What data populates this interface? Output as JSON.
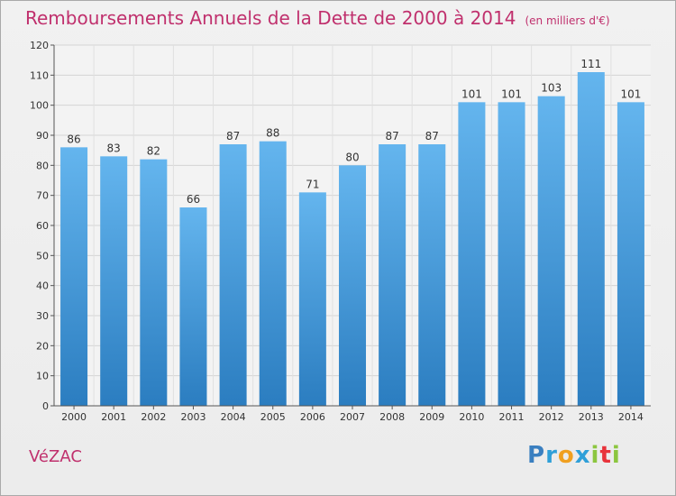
{
  "title": "Remboursements Annuels de la Dette de 2000 à 2014",
  "unit": "(en milliers d'€)",
  "commune": "VéZAC",
  "logo": {
    "text": "Proxiti",
    "letters": [
      "P",
      "r",
      "o",
      "x",
      "i",
      "t",
      "i"
    ],
    "colors": [
      "#3a7fc0",
      "#2f9fd8",
      "#f0a020",
      "#2f9fd8",
      "#8cc63f",
      "#e8333b",
      "#8cc63f"
    ]
  },
  "colors": {
    "bar_top": "#64b5ee",
    "bar_bottom": "#2b7dc0",
    "title": "#c0306d"
  },
  "chart_data": {
    "type": "bar",
    "title": "Remboursements Annuels de la Dette de 2000 à 2014",
    "categories": [
      "2000",
      "2001",
      "2002",
      "2003",
      "2004",
      "2005",
      "2006",
      "2007",
      "2008",
      "2009",
      "2010",
      "2011",
      "2012",
      "2013",
      "2014"
    ],
    "values": [
      86,
      83,
      82,
      66,
      87,
      88,
      71,
      80,
      87,
      87,
      101,
      101,
      103,
      111,
      101
    ],
    "xlabel": "",
    "ylabel": "",
    "ylim": [
      0,
      120
    ],
    "yticks": [
      0,
      10,
      20,
      30,
      40,
      50,
      60,
      70,
      80,
      90,
      100,
      110,
      120
    ],
    "grid": true,
    "legend": "none"
  }
}
